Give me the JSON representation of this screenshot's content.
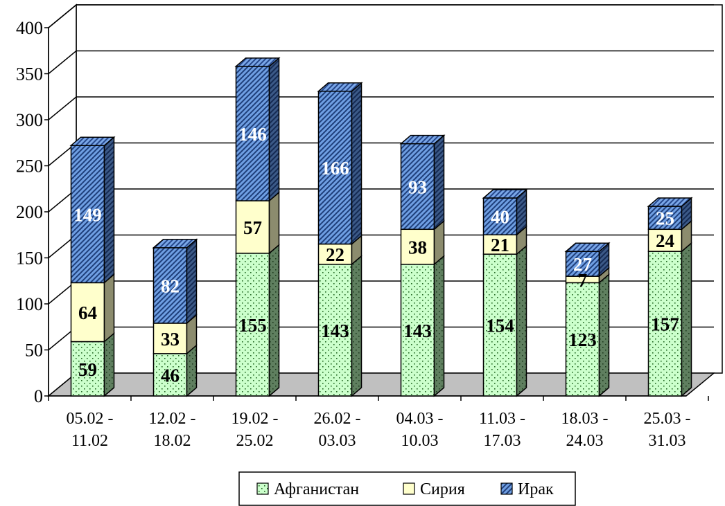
{
  "chart_data": {
    "type": "bar",
    "stacked": true,
    "three_d": true,
    "categories": [
      [
        "05.02 -",
        "11.02"
      ],
      [
        "12.02 -",
        "18.02"
      ],
      [
        "19.02 -",
        "25.02"
      ],
      [
        "26.02 -",
        "03.03"
      ],
      [
        "04.03 -",
        "10.03"
      ],
      [
        "11.03 -",
        "17.03"
      ],
      [
        "18.03 -",
        "24.03"
      ],
      [
        "25.03 -",
        "31.03"
      ]
    ],
    "series": [
      {
        "name": "Афганистан",
        "values": [
          59,
          46,
          155,
          143,
          143,
          154,
          123,
          157
        ],
        "color": "#ccffcc",
        "pattern": "dots",
        "label_color": "#000000"
      },
      {
        "name": "Сирия",
        "values": [
          64,
          33,
          57,
          22,
          38,
          21,
          7,
          24
        ],
        "color": "#ffffcc",
        "pattern": "none",
        "label_color": "#000000"
      },
      {
        "name": "Ирак",
        "values": [
          149,
          82,
          146,
          166,
          93,
          40,
          27,
          25
        ],
        "color": "#6699dd",
        "pattern": "diagonal",
        "label_color": "#ffffff"
      }
    ],
    "title": "",
    "xlabel": "",
    "ylabel": "",
    "ylim": [
      0,
      400
    ],
    "yticks": [
      0,
      50,
      100,
      150,
      200,
      250,
      300,
      350,
      400
    ],
    "grid": true,
    "legend_position": "bottom",
    "floor_color": "#c0c0c0"
  }
}
